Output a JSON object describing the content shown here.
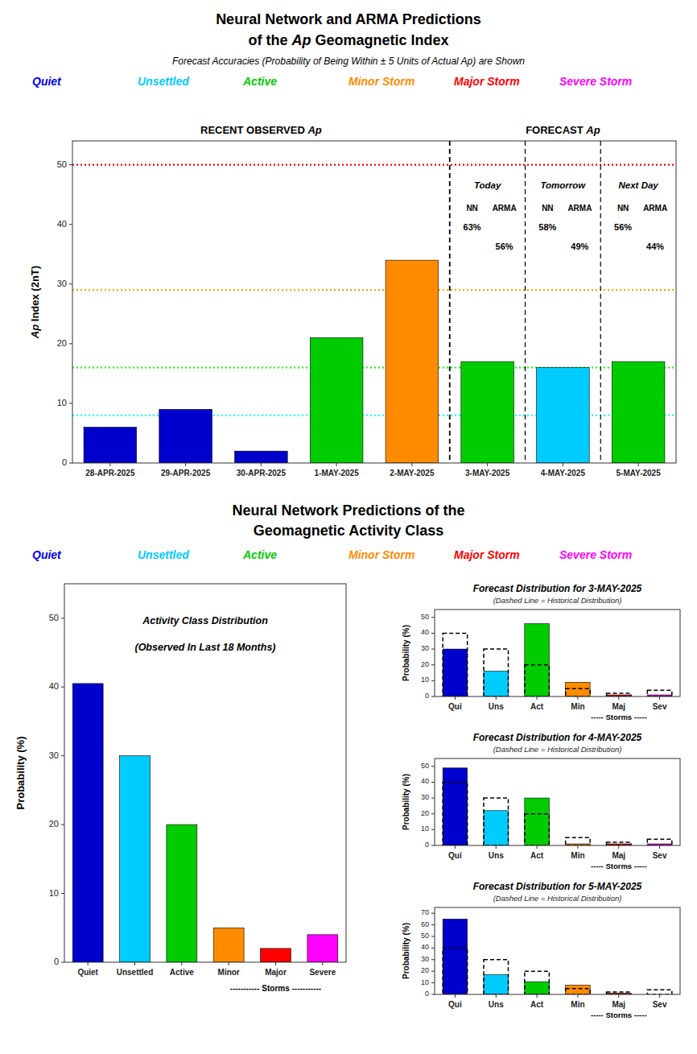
{
  "chart_data": [
    {
      "type": "bar",
      "title": [
        "Neural Network and ARMA Predictions",
        "of the Ap Geomagnetic Index"
      ],
      "subtitle": "Forecast Accuracies (Probability of Being Within ± 5 Units of Actual Ap) are Shown",
      "legend_entries": [
        {
          "name": "Quiet",
          "color": "#0000ee"
        },
        {
          "name": "Unsettled",
          "color": "#00ccff"
        },
        {
          "name": "Active",
          "color": "#00cc00"
        },
        {
          "name": "Minor Storm",
          "color": "#ff8c00"
        },
        {
          "name": "Major Storm",
          "color": "#ff0000"
        },
        {
          "name": "Severe Storm",
          "color": "#ff00ff"
        }
      ],
      "categories": [
        "28-APR-2025",
        "29-APR-2025",
        "30-APR-2025",
        "1-MAY-2025",
        "2-MAY-2025",
        "3-MAY-2025",
        "4-MAY-2025",
        "5-MAY-2025"
      ],
      "values": [
        6,
        9,
        2,
        21,
        34,
        17,
        16,
        17
      ],
      "colors": [
        "#0000cc",
        "#0000cc",
        "#0000cc",
        "#00cc00",
        "#ff8c00",
        "#00cc00",
        "#00ccff",
        "#00cc00"
      ],
      "reference_lines": [
        {
          "value": 8,
          "color": "cyan"
        },
        {
          "value": 16,
          "color": "lime"
        },
        {
          "value": 29,
          "color": "orange"
        },
        {
          "value": 50,
          "color": "red"
        }
      ],
      "ylim": [
        0,
        54
      ],
      "yticks": [
        0,
        10,
        20,
        30,
        40,
        50
      ],
      "ylabel": "Ap Index (2nT)",
      "annotations": [
        "RECENT OBSERVED Ap",
        "FORECAST Ap"
      ],
      "forecast_labels": [
        "Today",
        "Tomorrow",
        "Next Day"
      ],
      "method_labels": [
        "NN",
        "ARMA"
      ],
      "nn_accuracy": [
        "63%",
        "58%",
        "56%"
      ],
      "arma_accuracy": [
        "56%",
        "49%",
        "44%"
      ],
      "grid": false
    },
    {
      "type": "bar",
      "heading": [
        "Neural Network Predictions of the",
        "Geomagnetic Activity Class"
      ],
      "legend_entries": [
        {
          "name": "Quiet",
          "color": "#0000ee"
        },
        {
          "name": "Unsettled",
          "color": "#00ccff"
        },
        {
          "name": "Active",
          "color": "#00cc00"
        },
        {
          "name": "Minor Storm",
          "color": "#ff8c00"
        },
        {
          "name": "Major Storm",
          "color": "#ff0000"
        },
        {
          "name": "Severe Storm",
          "color": "#ff00ff"
        }
      ],
      "title": [
        "Activity Class Distribution",
        "(Observed In Last 18 Months)"
      ],
      "categories": [
        "Quiet",
        "Unsettled",
        "Active",
        "Minor",
        "Major",
        "Severe"
      ],
      "values": [
        40.5,
        30.0,
        20.0,
        5.0,
        2.0,
        4.0
      ],
      "colors": [
        "#0000cc",
        "#00ccff",
        "#00cc00",
        "#ff8c00",
        "#ff0000",
        "#ff00ff"
      ],
      "ylim": [
        0,
        55
      ],
      "yticks": [
        0,
        10,
        20,
        30,
        40,
        50
      ],
      "ylabel": "Probability (%)",
      "annotations": [
        "----------- Storms -----------"
      ],
      "grid": false
    },
    {
      "type": "bar",
      "title": "Forecast Distribution for 3-MAY-2025",
      "categories": [
        "Qui",
        "Uns",
        "Act",
        "Min",
        "Maj",
        "Sev"
      ],
      "values": [
        30,
        16,
        46,
        9,
        1,
        1
      ],
      "historical": [
        40,
        30,
        20,
        5,
        2,
        4
      ],
      "colors": [
        "#0000cc",
        "#00ccff",
        "#00cc00",
        "#ff8c00",
        "#ff0000",
        "#ff00ff"
      ],
      "ylim": [
        0,
        55
      ],
      "yticks": [
        0,
        10,
        20,
        30,
        40,
        50
      ],
      "ylabel": "Probability (%)",
      "annotations": [
        "(Dashed Line = Historical Distribution)",
        "----- Storms -----"
      ],
      "grid": false
    },
    {
      "type": "bar",
      "title": "Forecast Distribution for 4-MAY-2025",
      "categories": [
        "Qui",
        "Uns",
        "Act",
        "Min",
        "Maj",
        "Sev"
      ],
      "values": [
        49,
        22,
        30,
        1,
        1,
        1
      ],
      "historical": [
        40,
        30,
        20,
        5,
        2,
        4
      ],
      "colors": [
        "#0000cc",
        "#00ccff",
        "#00cc00",
        "#ff8c00",
        "#ff0000",
        "#ff00ff"
      ],
      "ylim": [
        0,
        55
      ],
      "yticks": [
        0,
        10,
        20,
        30,
        40,
        50
      ],
      "ylabel": "Probability (%)",
      "annotations": [
        "(Dashed Line = Historical Distribution)",
        "----- Storms -----"
      ],
      "grid": false
    },
    {
      "type": "bar",
      "title": "Forecast Distribution for 5-MAY-2025",
      "categories": [
        "Qui",
        "Uns",
        "Act",
        "Min",
        "Maj",
        "Sev"
      ],
      "values": [
        65,
        17,
        11,
        8,
        1,
        0
      ],
      "historical": [
        40,
        30,
        20,
        5,
        2,
        4
      ],
      "colors": [
        "#0000cc",
        "#00ccff",
        "#00cc00",
        "#ff8c00",
        "#ff0000",
        "#ff00ff"
      ],
      "ylim": [
        0,
        75
      ],
      "yticks": [
        0,
        10,
        20,
        30,
        40,
        50,
        60,
        70
      ],
      "ylabel": "Probability (%)",
      "annotations": [
        "(Dashed Line = Historical Distribution)",
        "----- Storms -----"
      ],
      "grid": false
    }
  ]
}
